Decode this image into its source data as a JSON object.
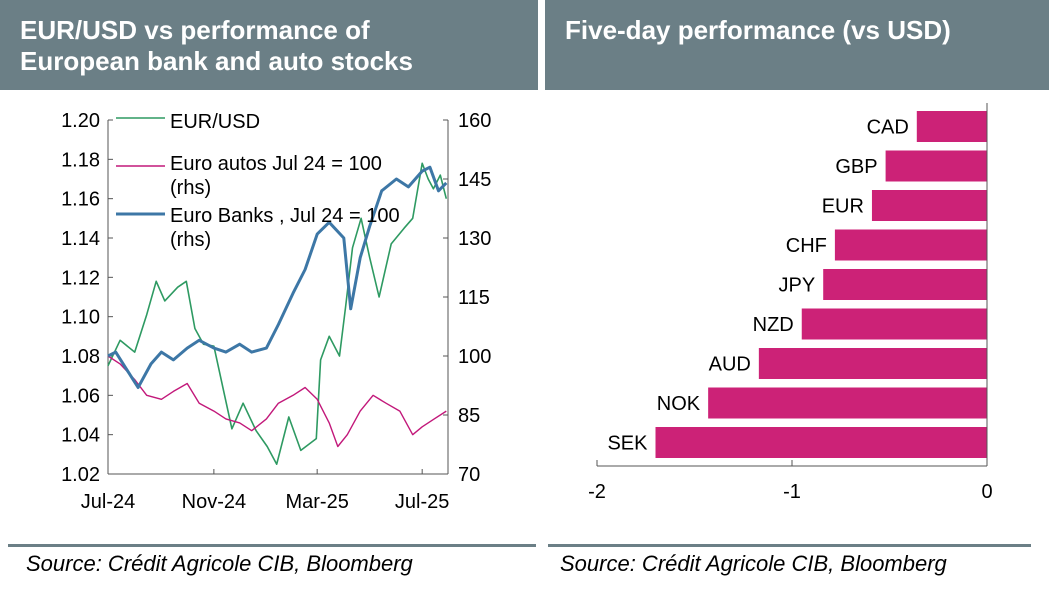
{
  "left_panel": {
    "title_line1": "EUR/USD vs performance of",
    "title_line2": "European bank and auto stocks",
    "source": "Source: Crédit Agricole CIB, Bloomberg"
  },
  "right_panel": {
    "title": "Five-day performance (vs USD)",
    "source": "Source: Crédit Agricole CIB, Bloomberg"
  },
  "colors": {
    "header_bg": "#6b7f86",
    "eurusd": "#2e9a62",
    "euro_autos": "#c2187a",
    "euro_banks": "#3d77a6",
    "bars": "#cc2277"
  },
  "chart_data": [
    {
      "type": "line",
      "title": "EUR/USD vs performance of European bank and auto stocks",
      "x_ticks": [
        "Jul-24",
        "Nov-24",
        "Mar-25",
        "Jul-25"
      ],
      "x_range": [
        "2024-07-01",
        "2025-07-31"
      ],
      "y_left": {
        "min": 1.02,
        "max": 1.2,
        "step": 0.02,
        "ticks": [
          "1.02",
          "1.04",
          "1.06",
          "1.08",
          "1.10",
          "1.12",
          "1.14",
          "1.16",
          "1.18",
          "1.20"
        ]
      },
      "y_right": {
        "min": 70,
        "max": 160,
        "step": 15,
        "ticks": [
          "70",
          "85",
          "100",
          "115",
          "130",
          "145",
          "160"
        ]
      },
      "legend_placement": "top-left",
      "series": [
        {
          "name": "EUR/USD",
          "axis": "left",
          "points": [
            [
              "2024-07-01",
              1.075
            ],
            [
              "2024-07-15",
              1.088
            ],
            [
              "2024-08-01",
              1.082
            ],
            [
              "2024-08-15",
              1.101
            ],
            [
              "2024-08-26",
              1.118
            ],
            [
              "2024-09-05",
              1.108
            ],
            [
              "2024-09-20",
              1.115
            ],
            [
              "2024-09-30",
              1.118
            ],
            [
              "2024-10-10",
              1.094
            ],
            [
              "2024-10-20",
              1.086
            ],
            [
              "2024-11-01",
              1.085
            ],
            [
              "2024-11-12",
              1.063
            ],
            [
              "2024-11-22",
              1.043
            ],
            [
              "2024-12-05",
              1.056
            ],
            [
              "2024-12-20",
              1.042
            ],
            [
              "2025-01-02",
              1.034
            ],
            [
              "2025-01-13",
              1.025
            ],
            [
              "2025-01-27",
              1.049
            ],
            [
              "2025-02-10",
              1.032
            ],
            [
              "2025-02-28",
              1.038
            ],
            [
              "2025-03-05",
              1.078
            ],
            [
              "2025-03-15",
              1.09
            ],
            [
              "2025-03-27",
              1.08
            ],
            [
              "2025-04-03",
              1.105
            ],
            [
              "2025-04-11",
              1.135
            ],
            [
              "2025-04-21",
              1.15
            ],
            [
              "2025-05-01",
              1.13
            ],
            [
              "2025-05-12",
              1.11
            ],
            [
              "2025-05-26",
              1.137
            ],
            [
              "2025-06-10",
              1.145
            ],
            [
              "2025-06-20",
              1.15
            ],
            [
              "2025-07-01",
              1.178
            ],
            [
              "2025-07-08",
              1.17
            ],
            [
              "2025-07-14",
              1.165
            ],
            [
              "2025-07-22",
              1.172
            ],
            [
              "2025-07-29",
              1.16
            ]
          ]
        },
        {
          "name": "Euro autos Jul 24 = 100 (rhs)",
          "axis": "right",
          "points": [
            [
              "2024-07-01",
              100
            ],
            [
              "2024-07-15",
              98
            ],
            [
              "2024-08-01",
              94
            ],
            [
              "2024-08-15",
              90
            ],
            [
              "2024-09-01",
              89
            ],
            [
              "2024-09-15",
              91
            ],
            [
              "2024-10-01",
              93
            ],
            [
              "2024-10-15",
              88
            ],
            [
              "2024-11-01",
              86
            ],
            [
              "2024-11-15",
              84
            ],
            [
              "2024-12-01",
              83
            ],
            [
              "2024-12-15",
              81
            ],
            [
              "2025-01-01",
              84
            ],
            [
              "2025-01-15",
              88
            ],
            [
              "2025-02-01",
              90
            ],
            [
              "2025-02-15",
              92
            ],
            [
              "2025-03-01",
              89
            ],
            [
              "2025-03-15",
              83
            ],
            [
              "2025-03-25",
              77
            ],
            [
              "2025-04-05",
              80
            ],
            [
              "2025-04-20",
              86
            ],
            [
              "2025-05-05",
              90
            ],
            [
              "2025-05-20",
              88
            ],
            [
              "2025-06-05",
              86
            ],
            [
              "2025-06-20",
              80
            ],
            [
              "2025-07-01",
              82
            ],
            [
              "2025-07-15",
              84
            ],
            [
              "2025-07-29",
              86
            ]
          ]
        },
        {
          "name": "Euro Banks , Jul 24 = 100 (rhs)",
          "axis": "right",
          "points": [
            [
              "2024-07-01",
              100
            ],
            [
              "2024-07-10",
              101
            ],
            [
              "2024-08-05",
              92
            ],
            [
              "2024-08-20",
              98
            ],
            [
              "2024-09-01",
              101
            ],
            [
              "2024-09-15",
              99
            ],
            [
              "2024-10-01",
              102
            ],
            [
              "2024-10-15",
              104
            ],
            [
              "2024-11-01",
              102
            ],
            [
              "2024-11-15",
              101
            ],
            [
              "2024-12-01",
              103
            ],
            [
              "2024-12-15",
              101
            ],
            [
              "2025-01-01",
              102
            ],
            [
              "2025-01-15",
              108
            ],
            [
              "2025-02-01",
              116
            ],
            [
              "2025-02-15",
              122
            ],
            [
              "2025-03-01",
              131
            ],
            [
              "2025-03-15",
              134
            ],
            [
              "2025-04-01",
              130
            ],
            [
              "2025-04-09",
              112
            ],
            [
              "2025-04-20",
              125
            ],
            [
              "2025-05-01",
              133
            ],
            [
              "2025-05-15",
              142
            ],
            [
              "2025-06-01",
              145
            ],
            [
              "2025-06-15",
              143
            ],
            [
              "2025-07-01",
              147
            ],
            [
              "2025-07-10",
              148
            ],
            [
              "2025-07-20",
              142
            ],
            [
              "2025-07-29",
              144
            ]
          ]
        }
      ]
    },
    {
      "type": "bar",
      "orientation": "horizontal",
      "title": "Five-day performance (vs USD)",
      "categories": [
        "CAD",
        "GBP",
        "EUR",
        "CHF",
        "JPY",
        "NZD",
        "AUD",
        "NOK",
        "SEK"
      ],
      "values": [
        -0.36,
        -0.52,
        -0.59,
        -0.78,
        -0.84,
        -0.95,
        -1.17,
        -1.43,
        -1.7
      ],
      "x_range": [
        -2,
        0
      ],
      "x_ticks": [
        "-2",
        "-1",
        "0"
      ]
    }
  ]
}
